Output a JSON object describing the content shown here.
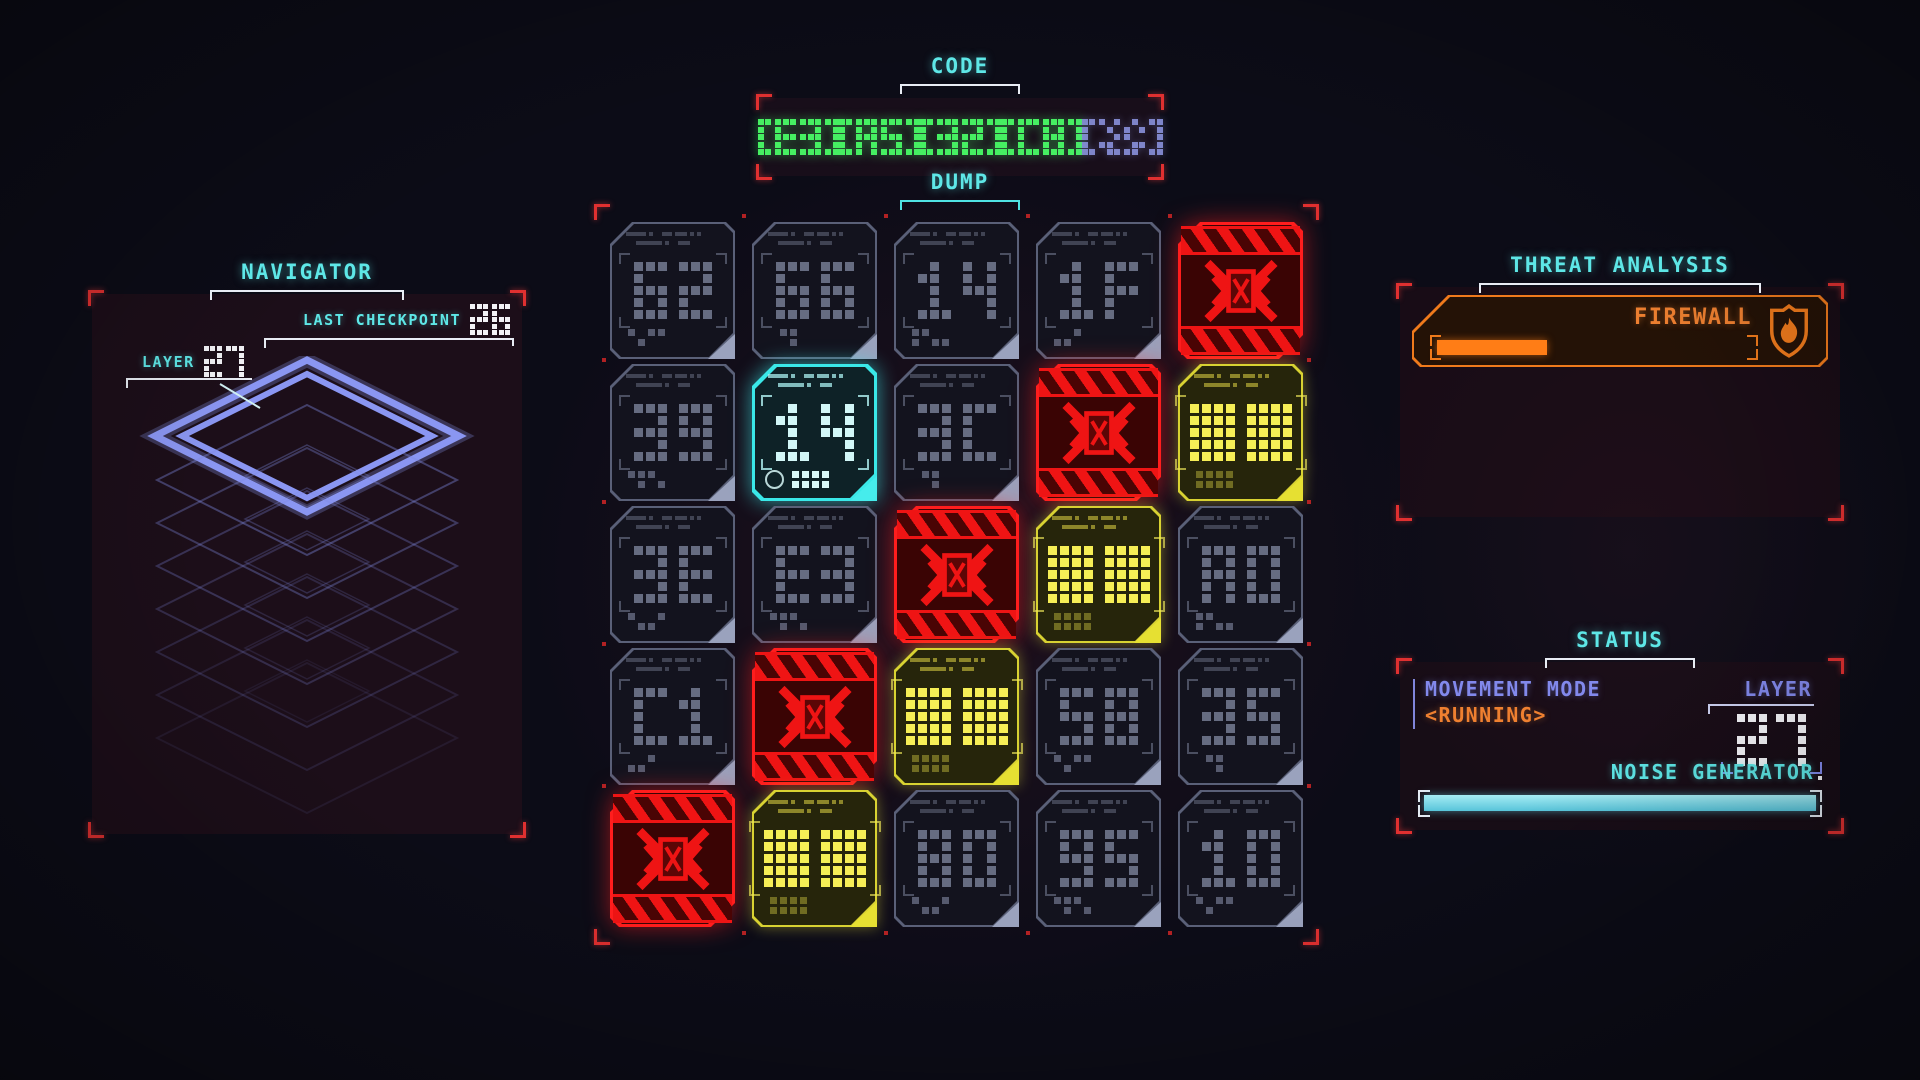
{
  "colors": {
    "accent_cyan": "#5ee7e7",
    "accent_green": "#46ef62",
    "accent_red": "#ef1414",
    "accent_yellow": "#e8df2e",
    "accent_orange": "#ef7a1c",
    "accent_periwinkle": "#8590ee",
    "text_white": "#f2f2f6"
  },
  "code": {
    "title": "CODE",
    "slots": [
      {
        "state": "revealed",
        "value": "E3"
      },
      {
        "state": "revealed",
        "value": "A5"
      },
      {
        "state": "revealed",
        "value": "32"
      },
      {
        "state": "revealed",
        "value": "C8"
      },
      {
        "state": "hidden",
        "value": ""
      }
    ]
  },
  "dump": {
    "title": "DUMP",
    "grid": [
      {
        "type": "data",
        "value": "62"
      },
      {
        "type": "data",
        "value": "66"
      },
      {
        "type": "data",
        "value": "14"
      },
      {
        "type": "data",
        "value": "1F"
      },
      {
        "type": "firewall",
        "value": null
      },
      {
        "type": "data",
        "value": "39"
      },
      {
        "type": "selected",
        "value": "14"
      },
      {
        "type": "data",
        "value": "3C"
      },
      {
        "type": "firewall",
        "value": null
      },
      {
        "type": "encrypted",
        "value": null
      },
      {
        "type": "data",
        "value": "3E"
      },
      {
        "type": "data",
        "value": "E3"
      },
      {
        "type": "firewall",
        "value": null
      },
      {
        "type": "encrypted",
        "value": null
      },
      {
        "type": "data",
        "value": "A0"
      },
      {
        "type": "data",
        "value": "C1"
      },
      {
        "type": "firewall",
        "value": null
      },
      {
        "type": "encrypted",
        "value": null
      },
      {
        "type": "data",
        "value": "58"
      },
      {
        "type": "data",
        "value": "35"
      },
      {
        "type": "firewall",
        "value": null
      },
      {
        "type": "encrypted",
        "value": null
      },
      {
        "type": "data",
        "value": "80"
      },
      {
        "type": "data",
        "value": "95"
      },
      {
        "type": "data",
        "value": "10"
      }
    ]
  },
  "navigator": {
    "title": "NAVIGATOR",
    "last_checkpoint_label": "LAST CHECKPOINT",
    "last_checkpoint_value": "26",
    "layer_label": "LAYER",
    "layer_value": "27",
    "depth_layers": 7
  },
  "threat": {
    "title": "THREAT ANALYSIS",
    "entries": [
      {
        "name": "FIREWALL",
        "icon": "shield-flame-icon",
        "progress": 0.35
      }
    ]
  },
  "status": {
    "title": "STATUS",
    "movement_mode_label": "MOVEMENT MODE",
    "movement_mode_value": "<RUNNING>",
    "layer_label": "LAYER",
    "layer_value": "27",
    "noise_label": "NOISE GENERATOR",
    "noise_progress": 1
  }
}
